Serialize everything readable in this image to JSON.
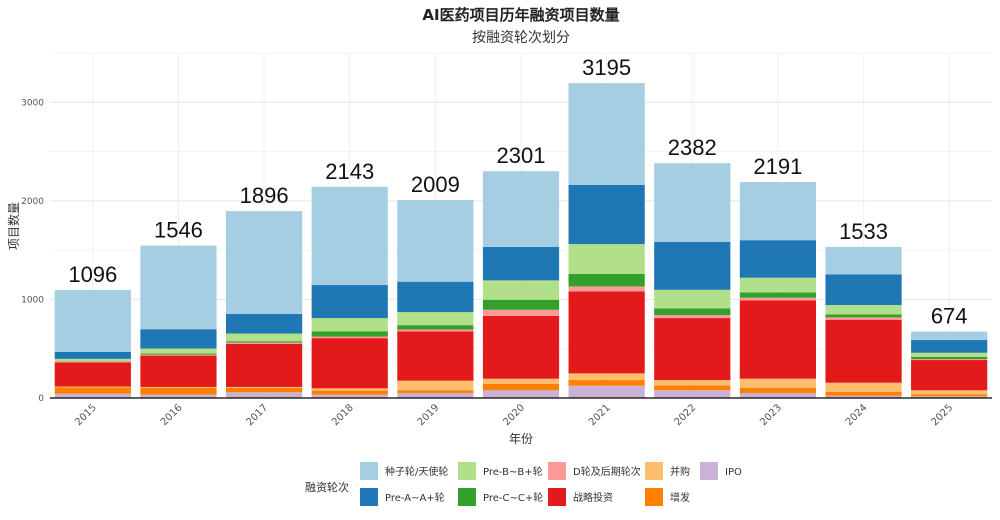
{
  "chart_data": {
    "type": "bar",
    "stacked": true,
    "title": "AI医药项目历年融资项目数量",
    "subtitle": "按融资轮次划分",
    "xlabel": "年份",
    "ylabel": "项目数量",
    "ylim": [
      0,
      3500
    ],
    "yticks": [
      0,
      1000,
      2000,
      3000
    ],
    "grid": true,
    "legend": {
      "title": "融资轮次",
      "position": "bottom"
    },
    "categories": [
      "2015",
      "2016",
      "2017",
      "2018",
      "2019",
      "2020",
      "2021",
      "2022",
      "2023",
      "2024",
      "2025"
    ],
    "totals": [
      1096,
      1546,
      1896,
      2143,
      2009,
      2301,
      3195,
      2382,
      2191,
      1533,
      674
    ],
    "series": [
      {
        "name": "IPO",
        "color": "#cab2d6",
        "values": [
          44,
          34,
          58,
          34,
          51,
          78,
          125,
          78,
          51,
          24,
          17
        ]
      },
      {
        "name": "增发",
        "color": "#ff7f00",
        "values": [
          64,
          71,
          44,
          41,
          27,
          67,
          57,
          50,
          54,
          40,
          20
        ]
      },
      {
        "name": "并购",
        "color": "#fdbf6f",
        "values": [
          8,
          7,
          10,
          23,
          98,
          51,
          68,
          54,
          91,
          91,
          41
        ]
      },
      {
        "name": "战略投资",
        "color": "#e31a1c",
        "values": [
          244,
          318,
          437,
          509,
          499,
          638,
          831,
          629,
          794,
          639,
          307
        ]
      },
      {
        "name": "D轮及后期轮次",
        "color": "#fb9a99",
        "values": [
          10,
          10,
          14,
          17,
          20,
          61,
          51,
          30,
          27,
          24,
          10
        ]
      },
      {
        "name": "Pre-C~C+轮",
        "color": "#33a02c",
        "values": [
          3,
          11,
          13,
          51,
          44,
          102,
          128,
          68,
          54,
          30,
          21
        ]
      },
      {
        "name": "Pre-B~B+轮",
        "color": "#b2df8a",
        "values": [
          24,
          51,
          78,
          135,
          132,
          196,
          301,
          189,
          149,
          95,
          43
        ]
      },
      {
        "name": "Pre-A~A+轮",
        "color": "#1f78b4",
        "values": [
          71,
          196,
          200,
          336,
          309,
          341,
          601,
          486,
          381,
          310,
          129
        ]
      },
      {
        "name": "种子轮/天使轮",
        "color": "#a6cee3",
        "values": [
          628,
          848,
          1042,
          997,
          829,
          767,
          1033,
          798,
          590,
          280,
          86
        ]
      }
    ],
    "legend_order": [
      "种子轮/天使轮",
      "Pre-B~B+轮",
      "D轮及后期轮次",
      "并购",
      "IPO",
      "Pre-A~A+轮",
      "Pre-C~C+轮",
      "战略投资",
      "增发"
    ]
  }
}
